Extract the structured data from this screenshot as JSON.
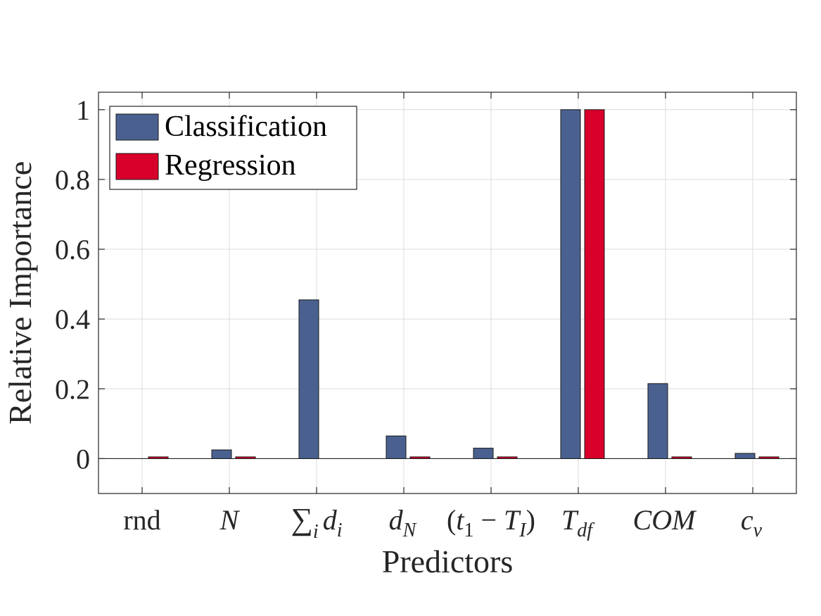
{
  "chart_data": {
    "type": "bar",
    "title": "",
    "xlabel": "Predictors",
    "ylabel": "Relative Importance",
    "categories": [
      "rnd",
      "N",
      "∑i di",
      "dN",
      "(t1 − TI)",
      "Tdf",
      "COM",
      "cv"
    ],
    "series": [
      {
        "name": "Classification",
        "color": "#4a6190",
        "values": [
          0.0,
          0.025,
          0.455,
          0.065,
          0.03,
          1.0,
          0.215,
          0.015
        ]
      },
      {
        "name": "Regression",
        "color": "#d8002a",
        "values": [
          0.005,
          0.005,
          0.0,
          0.005,
          0.005,
          1.0,
          0.005,
          0.005
        ]
      }
    ],
    "ylim": [
      -0.1,
      1.05
    ],
    "yticks": [
      0,
      0.2,
      0.4,
      0.6,
      0.8,
      1
    ],
    "ytick_labels": [
      "0",
      "0.2",
      "0.4",
      "0.6",
      "0.8",
      "1"
    ],
    "grid": true,
    "legend": {
      "position": "top-left"
    }
  }
}
